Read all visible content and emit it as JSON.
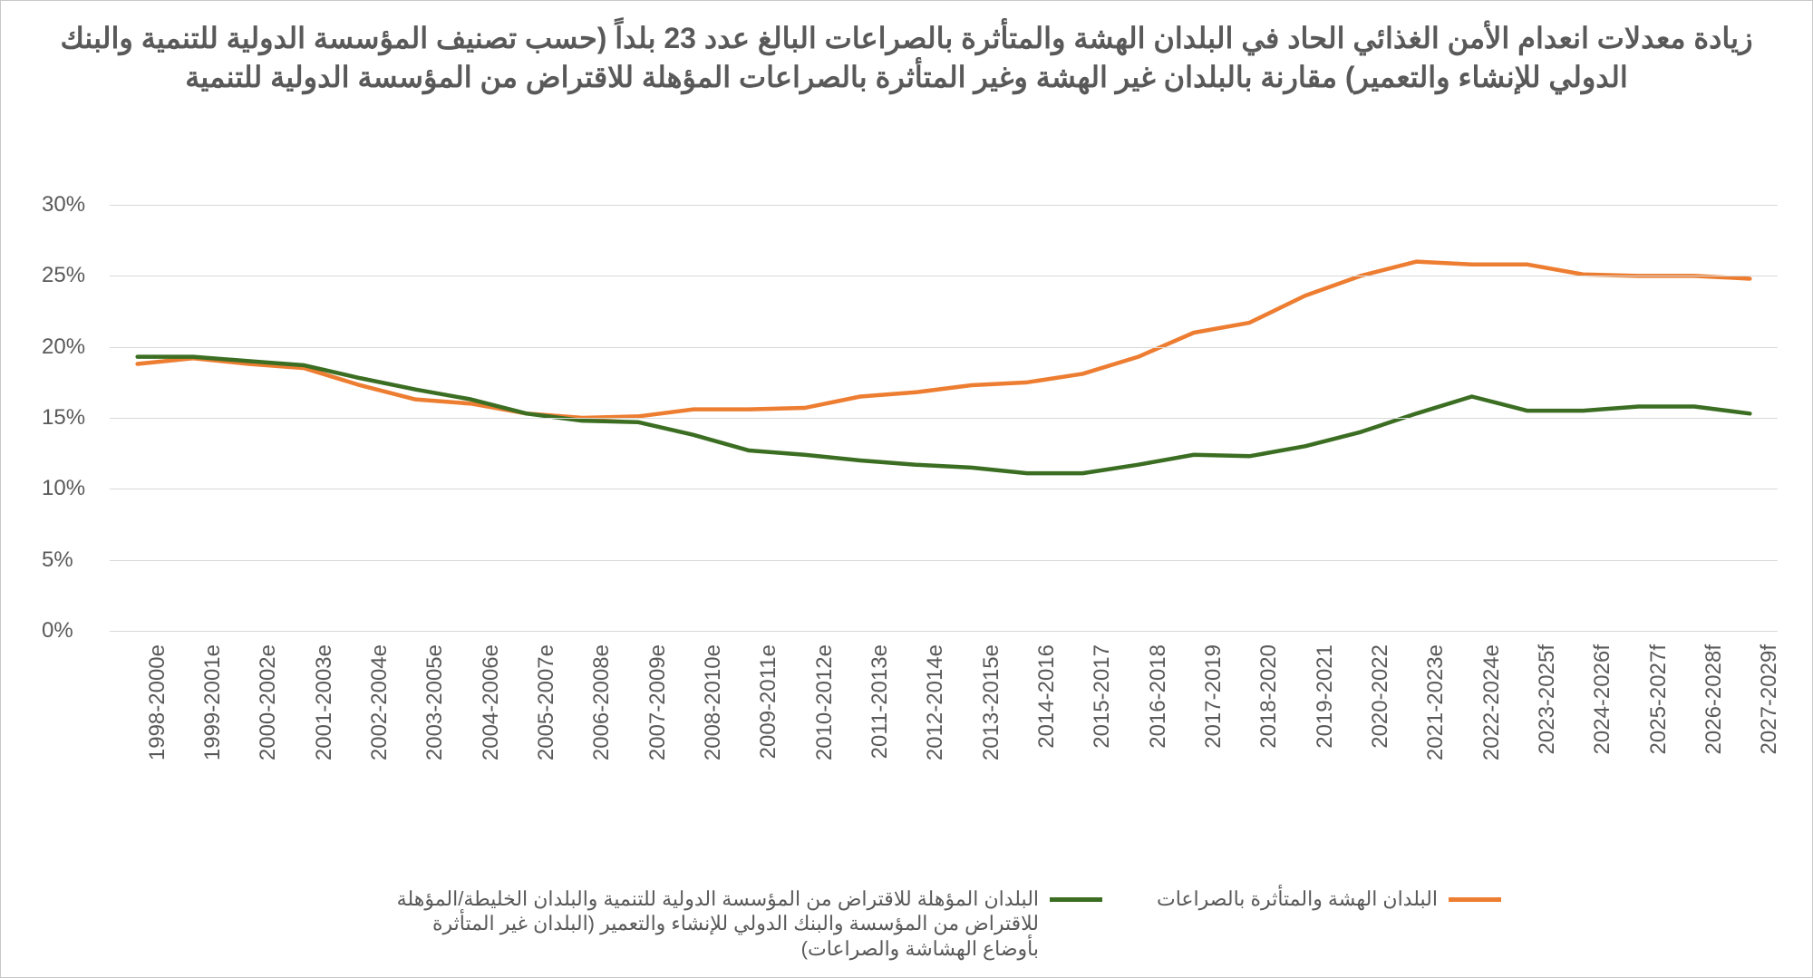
{
  "chart": {
    "type": "line",
    "title": "زيادة معدلات انعدام الأمن الغذائي الحاد في البلدان الهشة والمتأثرة بالصراعات البالغ عدد 23 بلداً (حسب تصنيف المؤسسة الدولية للتنمية والبنك الدولي للإنشاء والتعمير) مقارنة بالبلدان غير الهشة وغير المتأثرة بالصراعات المؤهلة للاقتراض من المؤسسة الدولية للتنمية",
    "title_fontsize": 32,
    "title_color": "#595959",
    "background_color": "#ffffff",
    "border_color": "#c8c8c8",
    "grid_color": "#d9d9d9",
    "axis_label_color": "#595959",
    "axis_fontsize": 24,
    "x_categories": [
      "1998-2000e",
      "1999-2001e",
      "2000-2002e",
      "2001-2003e",
      "2002-2004e",
      "2003-2005e",
      "2004-2006e",
      "2005-2007e",
      "2006-2008e",
      "2007-2009e",
      "2008-2010e",
      "2009-2011e",
      "2010-2012e",
      "2011-2013e",
      "2012-2014e",
      "2013-2015e",
      "2014-2016",
      "2015-2017",
      "2016-2018",
      "2017-2019",
      "2018-2020",
      "2019-2021",
      "2020-2022",
      "2021-2023e",
      "2022-2024e",
      "2023-2025f",
      "2024-2026f",
      "2025-2027f",
      "2026-2028f",
      "2027-2029f"
    ],
    "ylim": [
      0,
      30
    ],
    "ytick_step": 5,
    "y_tick_format": "percent",
    "line_width": 4.5,
    "series": [
      {
        "key": "fcs",
        "label": "البلدان الهشة والمتأثرة بالصراعات",
        "color": "#ed7d31",
        "values": [
          18.8,
          19.2,
          18.8,
          18.5,
          17.3,
          16.3,
          16.0,
          15.3,
          15.0,
          15.1,
          15.6,
          15.6,
          15.7,
          16.5,
          16.8,
          17.3,
          17.5,
          18.1,
          19.3,
          21.0,
          21.7,
          23.6,
          25.0,
          26.0,
          25.8,
          25.8,
          25.1,
          25.0,
          25.0,
          24.8
        ]
      },
      {
        "key": "non_fcs",
        "label": "البلدان المؤهلة للاقتراض من المؤسسة الدولية للتنمية والبلدان الخليطة/المؤهلة للاقتراض من المؤسسة والبنك الدولي للإنشاء والتعمير (البلدان غير المتأثرة بأوضاع الهشاشة والصراعات)",
        "color": "#3b6e22",
        "values": [
          19.3,
          19.3,
          19.0,
          18.7,
          17.8,
          17.0,
          16.3,
          15.3,
          14.8,
          14.7,
          13.8,
          12.7,
          12.4,
          12.0,
          11.7,
          11.5,
          11.1,
          11.1,
          11.7,
          12.4,
          12.3,
          13.0,
          14.0,
          15.3,
          16.5,
          15.5,
          15.5,
          15.8,
          15.8,
          15.3
        ]
      }
    ],
    "legend_fontsize": 22
  }
}
